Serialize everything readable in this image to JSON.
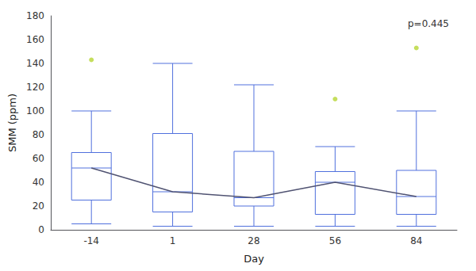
{
  "chart_data": {
    "type": "box",
    "xlabel": "Day",
    "ylabel": "SMM (ppm)",
    "categories": [
      "-14",
      "1",
      "28",
      "56",
      "84"
    ],
    "boxes": [
      {
        "whislo": 5,
        "q1": 25,
        "median": 52,
        "q3": 65,
        "whishi": 100,
        "fliers": [
          143
        ]
      },
      {
        "whislo": 3,
        "q1": 15,
        "median": 32,
        "q3": 81,
        "whishi": 140,
        "fliers": []
      },
      {
        "whislo": 3,
        "q1": 20,
        "median": 27,
        "q3": 66,
        "whishi": 122,
        "fliers": []
      },
      {
        "whislo": 3,
        "q1": 13,
        "median": 40,
        "q3": 49,
        "whishi": 70,
        "fliers": [
          110
        ]
      },
      {
        "whislo": 3,
        "q1": 13,
        "median": 28,
        "q3": 50,
        "whishi": 100,
        "fliers": [
          153
        ]
      }
    ],
    "median_line": [
      52,
      32,
      27,
      40,
      28
    ],
    "annotation": "p=0.445",
    "ylim": [
      0,
      180
    ],
    "yticks": [
      0,
      20,
      40,
      60,
      80,
      100,
      120,
      140,
      160,
      180
    ],
    "grid": false
  }
}
